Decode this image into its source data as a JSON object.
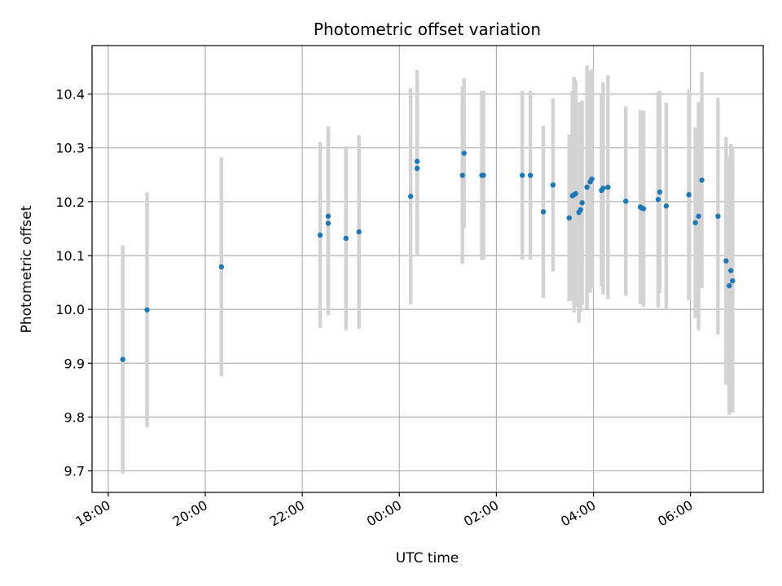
{
  "chart_data": {
    "type": "scatter",
    "title": "Photometric offset variation",
    "xlabel": "UTC time",
    "ylabel": "Photometric offset",
    "xlim": [
      "17:40",
      "07:30"
    ],
    "ylim": [
      9.66,
      10.49
    ],
    "xticks": [
      "18:00",
      "20:00",
      "22:00",
      "00:00",
      "02:00",
      "04:00",
      "06:00"
    ],
    "yticks": [
      "9.7",
      "9.8",
      "9.9",
      "10.0",
      "10.1",
      "10.2",
      "10.3",
      "10.4"
    ],
    "grid": true,
    "colors": {
      "points": "#1f77b4",
      "errorbars": "#d3d3d3",
      "grid": "#b0b0b0"
    },
    "series": [
      {
        "x": [
          "18:18",
          "18:48",
          "20:20",
          "22:22",
          "22:32",
          "22:32",
          "22:54",
          "23:10",
          "00:14",
          "00:22",
          "00:22",
          "01:18",
          "01:20",
          "01:42",
          "01:44",
          "02:32",
          "02:42",
          "02:58",
          "03:10",
          "03:30",
          "03:34",
          "03:36",
          "03:38",
          "03:42",
          "03:44",
          "03:46",
          "03:52",
          "03:56",
          "03:58",
          "04:10",
          "04:12",
          "04:18",
          "04:40",
          "04:58",
          "05:00",
          "05:02",
          "05:20",
          "05:22",
          "05:30",
          "05:58",
          "06:06",
          "06:10",
          "06:14",
          "06:34",
          "06:44",
          "06:48",
          "06:50",
          "06:52"
        ],
        "y": [
          9.907,
          9.999,
          10.079,
          10.138,
          10.16,
          10.173,
          10.132,
          10.144,
          10.21,
          10.262,
          10.275,
          10.249,
          10.29,
          10.249,
          10.249,
          10.249,
          10.249,
          10.181,
          10.231,
          10.17,
          10.211,
          10.213,
          10.215,
          10.18,
          10.185,
          10.198,
          10.227,
          10.237,
          10.242,
          10.221,
          10.225,
          10.227,
          10.201,
          10.19,
          10.188,
          10.187,
          10.204,
          10.218,
          10.192,
          10.213,
          10.161,
          10.173,
          10.24,
          10.173,
          10.09,
          10.044,
          10.072,
          10.053
        ],
        "yerr": [
          0.212,
          0.218,
          0.203,
          0.172,
          0.171,
          0.167,
          0.171,
          0.18,
          0.201,
          0.163,
          0.17,
          0.165,
          0.139,
          0.157,
          0.157,
          0.157,
          0.157,
          0.16,
          0.161,
          0.155,
          0.195,
          0.219,
          0.21,
          0.205,
          0.19,
          0.19,
          0.226,
          0.206,
          0.204,
          0.178,
          0.197,
          0.208,
          0.176,
          0.18,
          0.179,
          0.182,
          0.2,
          0.188,
          0.192,
          0.196,
          0.177,
          0.212,
          0.201,
          0.22,
          0.23,
          0.24,
          0.235,
          0.245
        ]
      }
    ]
  }
}
